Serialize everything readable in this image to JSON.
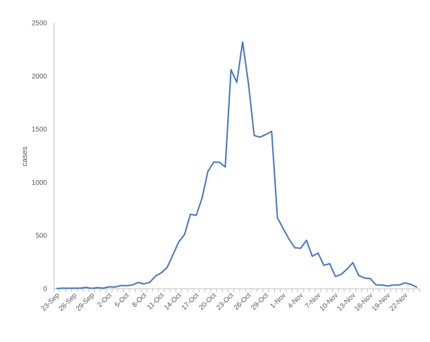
{
  "chart_data": {
    "type": "line",
    "title": "",
    "xlabel": "",
    "ylabel": "cases",
    "ylim": [
      0,
      2500
    ],
    "yticks": [
      0,
      500,
      1000,
      1500,
      2000,
      2500
    ],
    "grid": false,
    "legend": "none",
    "x_tick_labels": [
      "23-Sep",
      "26-Sep",
      "29-Sep",
      "2-Oct",
      "5-Oct",
      "8-Oct",
      "11-Oct",
      "14-Oct",
      "17-Oct",
      "20-Oct",
      "23-Oct",
      "26-Oct",
      "29-Oct",
      "1-Nov",
      "4-Nov",
      "7-Nov",
      "10-Nov",
      "13-Nov",
      "16-Nov",
      "19-Nov",
      "22-Nov"
    ],
    "x": [
      "23-Sep",
      "24-Sep",
      "25-Sep",
      "26-Sep",
      "27-Sep",
      "28-Sep",
      "29-Sep",
      "30-Sep",
      "1-Oct",
      "2-Oct",
      "3-Oct",
      "4-Oct",
      "5-Oct",
      "6-Oct",
      "7-Oct",
      "8-Oct",
      "9-Oct",
      "10-Oct",
      "11-Oct",
      "12-Oct",
      "13-Oct",
      "14-Oct",
      "15-Oct",
      "16-Oct",
      "17-Oct",
      "18-Oct",
      "19-Oct",
      "20-Oct",
      "21-Oct",
      "22-Oct",
      "23-Oct",
      "24-Oct",
      "25-Oct",
      "26-Oct",
      "27-Oct",
      "28-Oct",
      "29-Oct",
      "30-Oct",
      "31-Oct",
      "1-Nov",
      "2-Nov",
      "3-Nov",
      "4-Nov",
      "5-Nov",
      "6-Nov",
      "7-Nov",
      "8-Nov",
      "9-Nov",
      "10-Nov",
      "11-Nov",
      "12-Nov",
      "13-Nov",
      "14-Nov",
      "15-Nov",
      "16-Nov",
      "17-Nov",
      "18-Nov",
      "19-Nov",
      "20-Nov",
      "21-Nov",
      "22-Nov",
      "23-Nov",
      "24-Nov"
    ],
    "series": [
      {
        "color": "#4472c4",
        "values": [
          2,
          5,
          4,
          5,
          4,
          12,
          3,
          10,
          5,
          18,
          15,
          30,
          28,
          35,
          58,
          45,
          60,
          120,
          150,
          200,
          320,
          440,
          510,
          700,
          690,
          850,
          1100,
          1190,
          1190,
          1145,
          2060,
          1940,
          2320,
          1930,
          1440,
          1425,
          1450,
          1480,
          665,
          565,
          465,
          385,
          380,
          455,
          305,
          335,
          220,
          235,
          115,
          135,
          185,
          245,
          125,
          100,
          95,
          35,
          35,
          25,
          35,
          35,
          55,
          40,
          15
        ]
      }
    ],
    "colors": {
      "line": "#4472c4",
      "axis": "#bfbfbf",
      "text": "#595959"
    }
  }
}
